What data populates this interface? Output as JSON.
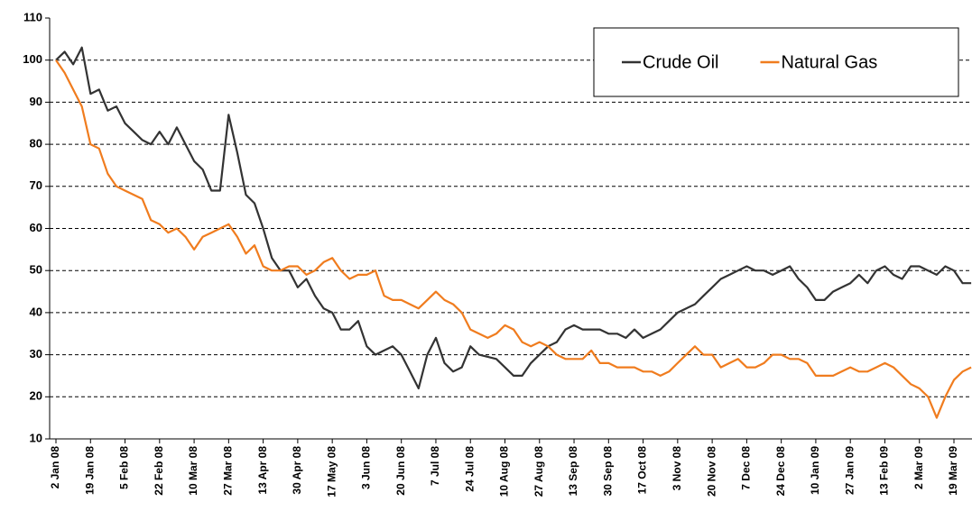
{
  "chart_data": {
    "type": "line",
    "categories": [
      "2 Jan 08",
      null,
      null,
      null,
      "19 Jan 08",
      null,
      null,
      null,
      "5 Feb 08",
      null,
      null,
      null,
      "22 Feb 08",
      null,
      null,
      null,
      "10 Mar 08",
      null,
      null,
      null,
      "27 Mar 08",
      null,
      null,
      null,
      "13 Apr 08",
      null,
      null,
      null,
      "30 Apr 08",
      null,
      null,
      null,
      "17 May 08",
      null,
      null,
      null,
      "3 Jun 08",
      null,
      null,
      null,
      "20 Jun 08",
      null,
      null,
      null,
      "7 Jul 08",
      null,
      null,
      null,
      "24 Jul 08",
      null,
      null,
      null,
      "10 Aug 08",
      null,
      null,
      null,
      "27 Aug 08",
      null,
      null,
      null,
      "13 Sep 08",
      null,
      null,
      null,
      "30 Sep 08",
      null,
      null,
      null,
      "17 Oct 08",
      null,
      null,
      null,
      "3 Nov 08",
      null,
      null,
      null,
      "20 Nov 08",
      null,
      null,
      null,
      "7 Dec 08",
      null,
      null,
      null,
      "24 Dec 08",
      null,
      null,
      null,
      "10 Jan 09",
      null,
      null,
      null,
      "27 Jan 09",
      null,
      null,
      null,
      "13 Feb 09",
      null,
      null,
      null,
      "2 Mar 09",
      null,
      null,
      null,
      "19 Mar 09",
      null,
      null
    ],
    "series": [
      {
        "name": "Crude Oil",
        "color": "#333333",
        "values": [
          100,
          102,
          99,
          103,
          92,
          93,
          88,
          89,
          85,
          83,
          81,
          80,
          83,
          80,
          84,
          80,
          76,
          74,
          69,
          69,
          87,
          78,
          68,
          66,
          60,
          53,
          50,
          50,
          46,
          48,
          44,
          41,
          40,
          36,
          36,
          38,
          32,
          30,
          31,
          32,
          30,
          26,
          22,
          30,
          34,
          28,
          26,
          27,
          32,
          30,
          29.5,
          29,
          27,
          25,
          25,
          28,
          30,
          32,
          33,
          36,
          37,
          36,
          36,
          36,
          35,
          35,
          34,
          36,
          34,
          35,
          36,
          38,
          40,
          41,
          42,
          44,
          46,
          48,
          49,
          50,
          51,
          50,
          50,
          49,
          50,
          51,
          48,
          46,
          43,
          43,
          45,
          46,
          47,
          49,
          47,
          50,
          51,
          49,
          48,
          51,
          51,
          50,
          49,
          51,
          50,
          47,
          47
        ]
      },
      {
        "name": "Natural Gas",
        "color": "#f07c1e",
        "values": [
          100,
          97,
          93,
          89,
          80,
          79,
          73,
          70,
          69,
          68,
          67,
          62,
          61,
          59,
          60,
          58,
          55,
          58,
          59,
          60,
          61,
          58,
          54,
          56,
          51,
          50,
          50,
          51,
          51,
          49,
          50,
          52,
          53,
          50,
          48,
          49,
          49,
          50,
          44,
          43,
          43,
          42,
          41,
          43,
          45,
          43,
          42,
          40,
          36,
          35,
          34,
          35,
          37,
          36,
          33,
          32,
          33,
          32,
          30,
          29,
          29,
          29,
          31,
          28,
          28,
          27,
          27,
          27,
          26,
          26,
          25,
          26,
          28,
          30,
          32,
          30,
          30,
          27,
          28,
          29,
          27,
          27,
          28,
          30,
          30,
          29,
          29,
          28,
          25,
          25,
          25,
          26,
          27,
          26,
          26,
          27,
          28,
          27,
          25,
          23,
          22,
          20,
          15,
          20,
          24,
          26,
          27
        ]
      }
    ],
    "ylim": [
      10,
      110
    ],
    "yticks": [
      10,
      20,
      30,
      40,
      50,
      60,
      70,
      80,
      90,
      100,
      110
    ],
    "grid": true,
    "legend": "upper right"
  }
}
